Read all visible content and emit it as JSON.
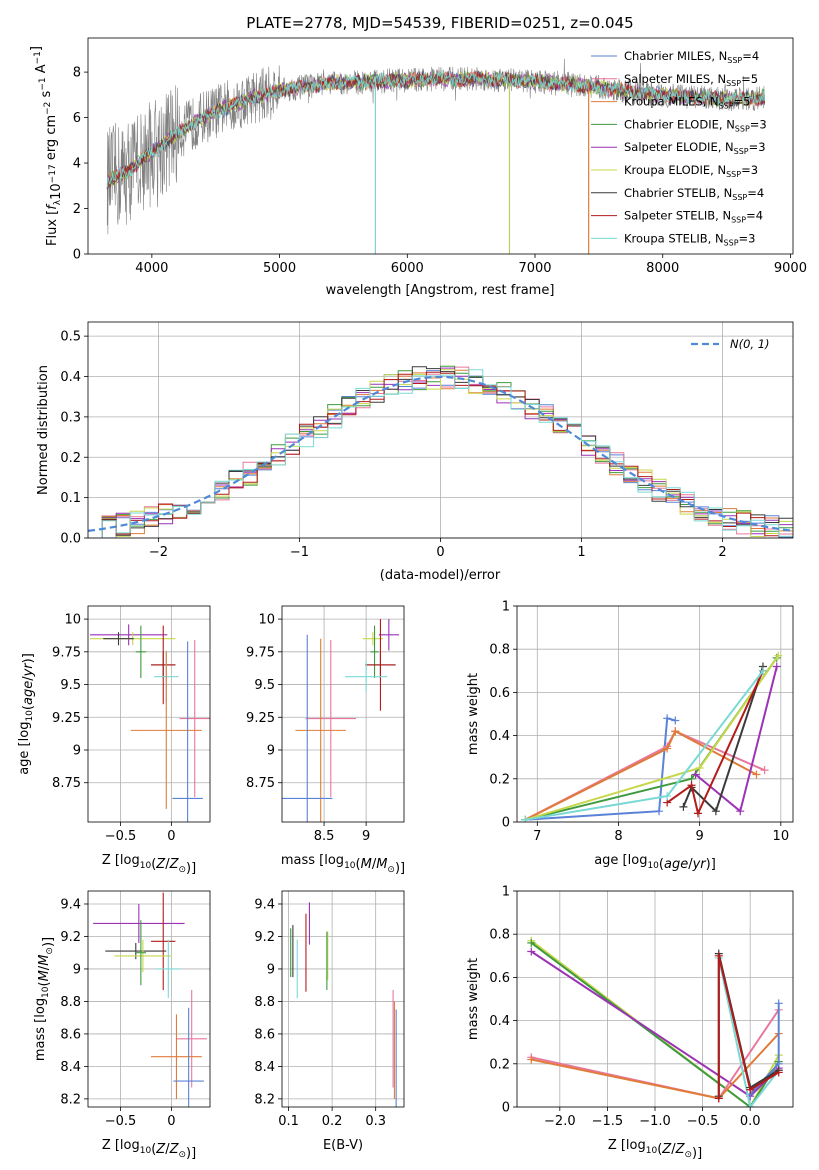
{
  "chart_data": [
    {
      "type": "line",
      "title": "PLATE=2778, MJD=54539, FIBERID=0251, z=0.045",
      "xlabel": "wavelength [Angstrom, rest frame]",
      "ylabel": "Flux [f$_\\lambda$10$^{-17}$ erg cm$^{-2}$ s$^{-1}$ A$^{-1}$]",
      "ylabel_parts": [
        "Flux [",
        "f",
        "λ",
        "10",
        "−17",
        " erg cm",
        "−2",
        " s",
        "−1",
        " A",
        "−1",
        "]"
      ],
      "xlim": [
        3500,
        9020
      ],
      "ylim": [
        0,
        9.5
      ],
      "xticks": [
        4000,
        5000,
        6000,
        7000,
        8000,
        9000
      ],
      "yticks": [
        0,
        2,
        4,
        6,
        8
      ],
      "grid": false,
      "legend_position": "right",
      "observed_color": "#808080",
      "observed_range": [
        3650,
        8800
      ],
      "continuum": {
        "x": [
          3650,
          3800,
          4000,
          4200,
          4400,
          4600,
          4800,
          5000,
          5400,
          5800,
          6200,
          6600,
          7000,
          7400,
          7800,
          8200,
          8600,
          8800
        ],
        "y": [
          3.2,
          3.6,
          4.5,
          5.3,
          6.0,
          6.5,
          6.9,
          7.2,
          7.5,
          7.6,
          7.7,
          7.7,
          7.6,
          7.4,
          7.1,
          6.9,
          6.8,
          6.9
        ]
      },
      "spike_lines": [
        {
          "x": 5750,
          "color": "#7ecfd4"
        },
        {
          "x": 6800,
          "color": "#b5cf60"
        },
        {
          "x": 7420,
          "color": "#e07b39"
        }
      ],
      "series": [
        {
          "name": "Chabrier MILES",
          "suffix": "=4",
          "color": "#5b82d6"
        },
        {
          "name": "Salpeter MILES",
          "suffix": "=5",
          "color": "#e8779c"
        },
        {
          "name": "Kroupa MILES",
          "suffix": "=5",
          "color": "#e07b39"
        },
        {
          "name": "Chabrier ELODIE",
          "suffix": "=3",
          "color": "#3f9a3f"
        },
        {
          "name": "Salpeter ELODIE",
          "suffix": "=3",
          "color": "#9b33b5"
        },
        {
          "name": "Kroupa ELODIE",
          "suffix": "=3",
          "color": "#c7d74a"
        },
        {
          "name": "Chabrier STELIB",
          "suffix": "=4",
          "color": "#3a3a3a"
        },
        {
          "name": "Salpeter STELIB",
          "suffix": "=4",
          "color": "#b31b1b"
        },
        {
          "name": "Kroupa STELIB",
          "suffix": "=3",
          "color": "#7ad9d4"
        }
      ],
      "legend_nssp_label": "N",
      "legend_nssp_sub": "SSP"
    },
    {
      "type": "line",
      "xlabel": "(data-model)/error",
      "ylabel": "Normed distribution",
      "xlim": [
        -2.5,
        2.5
      ],
      "ylim": [
        0,
        0.535
      ],
      "xticks": [
        -2,
        -1,
        0,
        1,
        2
      ],
      "yticks": [
        0.0,
        0.1,
        0.2,
        0.3,
        0.4,
        0.5
      ],
      "grid": true,
      "legend": "N(0, 1)",
      "legend_position": "top-right",
      "gauss_color": "#4f8ad9",
      "bin_width": 0.1,
      "hist_colors": [
        "#5b82d6",
        "#e8779c",
        "#e07b39",
        "#3f9a3f",
        "#9b33b5",
        "#c7d74a",
        "#3a3a3a",
        "#b31b1b",
        "#7ad9d4"
      ]
    },
    {
      "type": "scatter",
      "xlabel": "Z [log10(Z/Z⊙)]",
      "ylabel": "age [log10(age/yr)]",
      "xlim": [
        -0.82,
        0.38
      ],
      "ylim": [
        8.45,
        10.1
      ],
      "xticks": [
        -0.5,
        0.0
      ],
      "yticks": [
        8.75,
        9.0,
        9.25,
        9.5,
        9.75,
        10.0
      ],
      "grid": true,
      "points": [
        {
          "x": -0.42,
          "y": 9.88,
          "xerr": 0.38,
          "yerr": 0.08,
          "color": "#9b33b5"
        },
        {
          "x": -0.38,
          "y": 9.85,
          "xerr": 0.42,
          "yerr": 0.05,
          "color": "#c7d74a"
        },
        {
          "x": -0.52,
          "y": 9.85,
          "xerr": 0.15,
          "yerr": 0.05,
          "color": "#3a3a3a"
        },
        {
          "x": -0.3,
          "y": 9.75,
          "xerr": 0.05,
          "yerr": 0.2,
          "color": "#3f9a3f"
        },
        {
          "x": -0.08,
          "y": 9.65,
          "xerr": 0.12,
          "yerr": 0.1,
          "color": "#3a3a3a"
        },
        {
          "x": -0.08,
          "y": 9.65,
          "xerr": 0.12,
          "yerr": 0.3,
          "color": "#b31b1b"
        },
        {
          "x": -0.05,
          "y": 9.56,
          "xerr": 0.12,
          "yerr": 0.2,
          "color": "#7ad9d4"
        },
        {
          "x": 0.23,
          "y": 9.24,
          "xerr": 0.15,
          "yerr": 0.6,
          "color": "#e8779c"
        },
        {
          "x": -0.05,
          "y": 9.15,
          "xerr": 0.35,
          "yerr": 0.6,
          "color": "#e07b39"
        },
        {
          "x": 0.16,
          "y": 8.63,
          "xerr": 0.15,
          "yerr": 1.2,
          "color": "#5b82d6"
        }
      ]
    },
    {
      "type": "scatter",
      "xlabel": "mass [log10(M/M⊙)]",
      "xlim": [
        8.0,
        9.45
      ],
      "ylim": [
        8.45,
        10.1
      ],
      "xticks": [
        8.5,
        9.0
      ],
      "yticks": [
        8.75,
        9.0,
        9.25,
        9.5,
        9.75,
        10.0
      ],
      "grid": true,
      "points": [
        {
          "x": 9.27,
          "y": 9.88,
          "xerr": 0.12,
          "yerr": 0.12,
          "color": "#9b33b5"
        },
        {
          "x": 9.08,
          "y": 9.85,
          "xerr": 0.12,
          "yerr": 0.05,
          "color": "#c7d74a"
        },
        {
          "x": 9.1,
          "y": 9.75,
          "xerr": 0.05,
          "yerr": 0.2,
          "color": "#3f9a3f"
        },
        {
          "x": 9.17,
          "y": 9.65,
          "xerr": 0.18,
          "yerr": 0.1,
          "color": "#3a3a3a"
        },
        {
          "x": 9.17,
          "y": 9.65,
          "xerr": 0.18,
          "yerr": 0.35,
          "color": "#b31b1b"
        },
        {
          "x": 9.0,
          "y": 9.56,
          "xerr": 0.25,
          "yerr": 0.12,
          "color": "#7ad9d4"
        },
        {
          "x": 8.58,
          "y": 9.24,
          "xerr": 0.3,
          "yerr": 0.6,
          "color": "#e8779c"
        },
        {
          "x": 8.46,
          "y": 9.15,
          "xerr": 0.3,
          "yerr": 0.7,
          "color": "#e07b39"
        },
        {
          "x": 8.3,
          "y": 8.63,
          "xerr": 0.3,
          "yerr": 1.25,
          "color": "#5b82d6"
        }
      ]
    },
    {
      "type": "line",
      "xlabel": "age [log10(age/yr)]",
      "ylabel": "mass weight",
      "xlim": [
        6.75,
        10.15
      ],
      "ylim": [
        0.0,
        1.0
      ],
      "xticks": [
        7,
        8,
        9,
        10
      ],
      "yticks": [
        0.0,
        0.2,
        0.4,
        0.6,
        0.8,
        1.0
      ],
      "grid": true,
      "series": [
        {
          "color": "#5b82d6",
          "x": [
            6.85,
            8.5,
            8.6,
            8.7
          ],
          "y": [
            0.01,
            0.05,
            0.48,
            0.47
          ]
        },
        {
          "color": "#e8779c",
          "x": [
            6.85,
            8.6,
            8.7,
            9.8
          ],
          "y": [
            0.01,
            0.35,
            0.42,
            0.24
          ]
        },
        {
          "color": "#e07b39",
          "x": [
            6.85,
            8.6,
            8.7,
            9.7
          ],
          "y": [
            0.01,
            0.34,
            0.42,
            0.22
          ]
        },
        {
          "color": "#3f9a3f",
          "x": [
            6.85,
            8.9,
            9.95
          ],
          "y": [
            0.01,
            0.2,
            0.76
          ]
        },
        {
          "color": "#9b33b5",
          "x": [
            8.95,
            9.5,
            9.95
          ],
          "y": [
            0.22,
            0.05,
            0.72
          ]
        },
        {
          "color": "#c7d74a",
          "x": [
            6.85,
            9.0,
            9.97
          ],
          "y": [
            0.01,
            0.25,
            0.77
          ]
        },
        {
          "color": "#3a3a3a",
          "x": [
            8.8,
            8.9,
            9.2,
            9.78
          ],
          "y": [
            0.07,
            0.16,
            0.05,
            0.72
          ]
        },
        {
          "color": "#b31b1b",
          "x": [
            8.6,
            8.9,
            8.98,
            9.78
          ],
          "y": [
            0.09,
            0.17,
            0.04,
            0.7
          ]
        },
        {
          "color": "#7ad9d4",
          "x": [
            6.85,
            8.6,
            9.78
          ],
          "y": [
            0.01,
            0.12,
            0.7
          ]
        }
      ]
    },
    {
      "type": "scatter",
      "xlabel": "Z [log10(Z/Z⊙)]",
      "ylabel": "mass [log10(M/M⊙)]",
      "xlim": [
        -0.82,
        0.38
      ],
      "ylim": [
        8.15,
        9.48
      ],
      "xticks": [
        -0.5,
        0.0
      ],
      "yticks": [
        8.2,
        8.4,
        8.6,
        8.8,
        9.0,
        9.2,
        9.4
      ],
      "grid": true,
      "points": [
        {
          "x": -0.32,
          "y": 9.28,
          "xerr": 0.45,
          "yerr": 0.12,
          "color": "#9b33b5"
        },
        {
          "x": -0.35,
          "y": 9.11,
          "xerr": 0.3,
          "yerr": 0.05,
          "color": "#3a3a3a"
        },
        {
          "x": -0.08,
          "y": 9.17,
          "xerr": 0.12,
          "yerr": 0.3,
          "color": "#b31b1b"
        },
        {
          "x": -0.28,
          "y": 9.08,
          "xerr": 0.28,
          "yerr": 0.1,
          "color": "#c7d74a"
        },
        {
          "x": -0.3,
          "y": 9.1,
          "xerr": 0.05,
          "yerr": 0.2,
          "color": "#3f9a3f"
        },
        {
          "x": -0.03,
          "y": 9.0,
          "xerr": 0.12,
          "yerr": 0.18,
          "color": "#7ad9d4"
        },
        {
          "x": 0.2,
          "y": 8.57,
          "xerr": 0.15,
          "yerr": 0.3,
          "color": "#e8779c"
        },
        {
          "x": 0.05,
          "y": 8.46,
          "xerr": 0.25,
          "yerr": 0.26,
          "color": "#e07b39"
        },
        {
          "x": 0.17,
          "y": 8.31,
          "xerr": 0.15,
          "yerr": 0.45,
          "color": "#5b82d6"
        }
      ]
    },
    {
      "type": "scatter",
      "xlabel": "E(B-V)",
      "xlim": [
        0.085,
        0.365
      ],
      "ylim": [
        8.15,
        9.48
      ],
      "xticks": [
        0.1,
        0.2,
        0.3
      ],
      "yticks": [
        8.2,
        8.4,
        8.6,
        8.8,
        9.0,
        9.2,
        9.4
      ],
      "grid": true,
      "points": [
        {
          "x": 0.148,
          "y": 9.28,
          "xerr": 0.0,
          "yerr": 0.13,
          "color": "#9b33b5"
        },
        {
          "x": 0.11,
          "y": 9.11,
          "xerr": 0.0,
          "yerr": 0.16,
          "color": "#3a3a3a"
        },
        {
          "x": 0.14,
          "y": 9.1,
          "xerr": 0.0,
          "yerr": 0.24,
          "color": "#b31b1b"
        },
        {
          "x": 0.19,
          "y": 9.08,
          "xerr": 0.0,
          "yerr": 0.15,
          "color": "#c7d74a"
        },
        {
          "x": 0.105,
          "y": 9.1,
          "xerr": 0.0,
          "yerr": 0.15,
          "color": "#3f9a3f"
        },
        {
          "x": 0.188,
          "y": 9.05,
          "xerr": 0.0,
          "yerr": 0.18,
          "color": "#3f9a3f"
        },
        {
          "x": 0.12,
          "y": 9.0,
          "xerr": 0.0,
          "yerr": 0.18,
          "color": "#7ad9d4"
        },
        {
          "x": 0.34,
          "y": 8.57,
          "xerr": 0.0,
          "yerr": 0.3,
          "color": "#e8779c"
        },
        {
          "x": 0.343,
          "y": 8.5,
          "xerr": 0.0,
          "yerr": 0.3,
          "color": "#e07b39"
        },
        {
          "x": 0.347,
          "y": 8.45,
          "xerr": 0.0,
          "yerr": 0.3,
          "color": "#5b82d6"
        }
      ]
    },
    {
      "type": "line",
      "xlabel": "Z [log10(Z/Z⊙)]",
      "ylabel": "mass weight",
      "xlim": [
        -2.45,
        0.45
      ],
      "ylim": [
        0.0,
        1.0
      ],
      "xticks": [
        -2.0,
        -1.5,
        -1.0,
        -0.5,
        0.0
      ],
      "yticks": [
        0.0,
        0.2,
        0.4,
        0.6,
        0.8,
        1.0
      ],
      "grid": true,
      "series": [
        {
          "color": "#c7d74a",
          "x": [
            -2.3,
            0.0,
            0.3
          ],
          "y": [
            0.77,
            0.0,
            0.24
          ]
        },
        {
          "color": "#3f9a3f",
          "x": [
            -2.3,
            0.0,
            0.3
          ],
          "y": [
            0.76,
            0.0,
            0.21
          ]
        },
        {
          "color": "#9b33b5",
          "x": [
            -2.3,
            0.0,
            0.3
          ],
          "y": [
            0.72,
            0.05,
            0.18
          ]
        },
        {
          "color": "#e8779c",
          "x": [
            -2.3,
            -0.33,
            0.3
          ],
          "y": [
            0.23,
            0.04,
            0.45
          ]
        },
        {
          "color": "#e07b39",
          "x": [
            -2.3,
            -0.33,
            0.3
          ],
          "y": [
            0.22,
            0.04,
            0.34
          ]
        },
        {
          "color": "#5b82d6",
          "x": [
            0.0,
            0.3,
            0.3
          ],
          "y": [
            0.06,
            0.2,
            0.48
          ]
        },
        {
          "color": "#7ad9d4",
          "x": [
            -0.33,
            0.0,
            0.3
          ],
          "y": [
            0.69,
            0.0,
            0.17
          ]
        },
        {
          "color": "#3a3a3a",
          "x": [
            -0.33,
            -0.33,
            0.0,
            0.3
          ],
          "y": [
            0.05,
            0.71,
            0.09,
            0.17
          ]
        },
        {
          "color": "#b31b1b",
          "x": [
            -0.33,
            -0.33,
            0.0,
            0.3
          ],
          "y": [
            0.04,
            0.7,
            0.08,
            0.16
          ]
        }
      ]
    }
  ]
}
